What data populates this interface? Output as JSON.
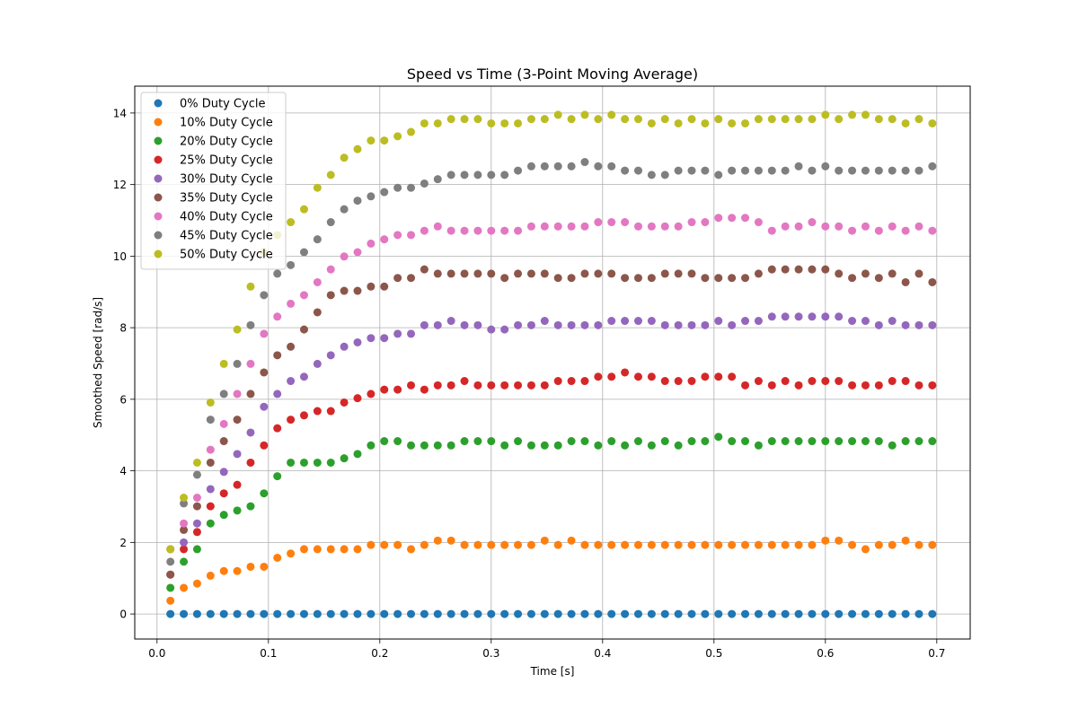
{
  "chart_data": {
    "type": "scatter",
    "title": "Speed vs Time (3-Point Moving Average)",
    "xlabel": "Time [s]",
    "ylabel": "Smoothed Speed [rad/s]",
    "xlim": [
      -0.02,
      0.73
    ],
    "ylim": [
      -0.7,
      14.75
    ],
    "xticks": [
      0.0,
      0.1,
      0.2,
      0.3,
      0.4,
      0.5,
      0.6,
      0.7
    ],
    "xtick_labels": [
      "0.0",
      "0.1",
      "0.2",
      "0.3",
      "0.4",
      "0.5",
      "0.6",
      "0.7"
    ],
    "yticks": [
      0,
      2,
      4,
      6,
      8,
      10,
      12,
      14
    ],
    "ytick_labels": [
      "0",
      "2",
      "4",
      "6",
      "8",
      "10",
      "12",
      "14"
    ],
    "grid": true,
    "legend_position": "top-left",
    "x": [
      0.012,
      0.024,
      0.036,
      0.048,
      0.06,
      0.072,
      0.084,
      0.096,
      0.108,
      0.12,
      0.132,
      0.144,
      0.156,
      0.168,
      0.18,
      0.192,
      0.204,
      0.216,
      0.228,
      0.24,
      0.252,
      0.264,
      0.276,
      0.288,
      0.3,
      0.312,
      0.324,
      0.336,
      0.348,
      0.36,
      0.372,
      0.384,
      0.396,
      0.408,
      0.42,
      0.432,
      0.444,
      0.456,
      0.468,
      0.48,
      0.492,
      0.504,
      0.516,
      0.528,
      0.54,
      0.552,
      0.564,
      0.576,
      0.588,
      0.6,
      0.612,
      0.624,
      0.636,
      0.648,
      0.66,
      0.672,
      0.684,
      0.696
    ],
    "series": [
      {
        "name": "0% Duty Cycle",
        "color": "#1f77b4",
        "values": [
          0,
          0,
          0,
          0,
          0,
          0,
          0,
          0,
          0,
          0,
          0,
          0,
          0,
          0,
          0,
          0,
          0,
          0,
          0,
          0,
          0,
          0,
          0,
          0,
          0,
          0,
          0,
          0,
          0,
          0,
          0,
          0,
          0,
          0,
          0,
          0,
          0,
          0,
          0,
          0,
          0,
          0,
          0,
          0,
          0,
          0,
          0,
          0,
          0,
          0,
          0,
          0,
          0,
          0,
          0,
          0,
          0,
          0
        ]
      },
      {
        "name": "10% Duty Cycle",
        "color": "#ff7f0e",
        "values": [
          0.37,
          0.73,
          0.85,
          1.07,
          1.2,
          1.2,
          1.32,
          1.32,
          1.57,
          1.69,
          1.81,
          1.81,
          1.81,
          1.81,
          1.81,
          1.93,
          1.93,
          1.93,
          1.81,
          1.93,
          2.05,
          2.05,
          1.93,
          1.93,
          1.93,
          1.93,
          1.93,
          1.93,
          2.05,
          1.93,
          2.05,
          1.93,
          1.93,
          1.93,
          1.93,
          1.93,
          1.93,
          1.93,
          1.93,
          1.93,
          1.93,
          1.93,
          1.93,
          1.93,
          1.93,
          1.93,
          1.93,
          1.93,
          1.93,
          2.05,
          2.05,
          1.93,
          1.81,
          1.93,
          1.93,
          2.05,
          1.93,
          1.93
        ]
      },
      {
        "name": "20% Duty Cycle",
        "color": "#2ca02c",
        "values": [
          0.73,
          1.46,
          1.81,
          2.53,
          2.77,
          2.89,
          3.01,
          3.37,
          3.85,
          4.23,
          4.23,
          4.23,
          4.23,
          4.35,
          4.47,
          4.71,
          4.83,
          4.83,
          4.71,
          4.71,
          4.71,
          4.71,
          4.83,
          4.83,
          4.83,
          4.71,
          4.83,
          4.71,
          4.71,
          4.71,
          4.83,
          4.83,
          4.71,
          4.83,
          4.71,
          4.83,
          4.71,
          4.83,
          4.71,
          4.83,
          4.83,
          4.95,
          4.83,
          4.83,
          4.71,
          4.83,
          4.83,
          4.83,
          4.83,
          4.83,
          4.83,
          4.83,
          4.83,
          4.83,
          4.71,
          4.83,
          4.83,
          4.83
        ]
      },
      {
        "name": "25% Duty Cycle",
        "color": "#d62728",
        "values": [
          1.1,
          1.81,
          2.29,
          3.01,
          3.37,
          3.61,
          4.23,
          4.71,
          5.19,
          5.43,
          5.55,
          5.67,
          5.67,
          5.91,
          6.03,
          6.15,
          6.27,
          6.27,
          6.39,
          6.27,
          6.39,
          6.39,
          6.51,
          6.39,
          6.39,
          6.39,
          6.39,
          6.39,
          6.39,
          6.51,
          6.51,
          6.51,
          6.63,
          6.63,
          6.75,
          6.63,
          6.63,
          6.51,
          6.51,
          6.51,
          6.63,
          6.63,
          6.63,
          6.39,
          6.51,
          6.39,
          6.51,
          6.39,
          6.51,
          6.51,
          6.51,
          6.39,
          6.39,
          6.39,
          6.51,
          6.51,
          6.39,
          6.39
        ]
      },
      {
        "name": "30% Duty Cycle",
        "color": "#9467bd",
        "values": [
          1.81,
          2.0,
          2.53,
          3.49,
          3.97,
          4.47,
          5.07,
          5.79,
          6.15,
          6.51,
          6.63,
          6.99,
          7.23,
          7.47,
          7.59,
          7.71,
          7.71,
          7.83,
          7.83,
          8.07,
          8.07,
          8.19,
          8.07,
          8.07,
          7.95,
          7.95,
          8.07,
          8.07,
          8.19,
          8.07,
          8.07,
          8.07,
          8.07,
          8.19,
          8.19,
          8.19,
          8.19,
          8.07,
          8.07,
          8.07,
          8.07,
          8.19,
          8.07,
          8.19,
          8.19,
          8.31,
          8.31,
          8.31,
          8.31,
          8.31,
          8.31,
          8.19,
          8.19,
          8.07,
          8.19,
          8.07,
          8.07,
          8.07
        ]
      },
      {
        "name": "35% Duty Cycle",
        "color": "#8c564b",
        "values": [
          1.1,
          2.35,
          3.01,
          4.23,
          4.83,
          5.43,
          6.15,
          6.75,
          7.23,
          7.47,
          7.95,
          8.43,
          8.91,
          9.03,
          9.03,
          9.15,
          9.15,
          9.39,
          9.39,
          9.63,
          9.51,
          9.51,
          9.51,
          9.51,
          9.51,
          9.39,
          9.51,
          9.51,
          9.51,
          9.39,
          9.39,
          9.51,
          9.51,
          9.51,
          9.39,
          9.39,
          9.39,
          9.51,
          9.51,
          9.51,
          9.39,
          9.39,
          9.39,
          9.39,
          9.51,
          9.63,
          9.63,
          9.63,
          9.63,
          9.63,
          9.51,
          9.39,
          9.51,
          9.39,
          9.51,
          9.27,
          9.51,
          9.27
        ]
      },
      {
        "name": "40% Duty Cycle",
        "color": "#e377c2",
        "values": [
          1.81,
          2.53,
          3.25,
          4.59,
          5.31,
          6.15,
          6.99,
          7.83,
          8.31,
          8.67,
          8.91,
          9.27,
          9.63,
          9.99,
          10.11,
          10.35,
          10.47,
          10.59,
          10.59,
          10.71,
          10.83,
          10.71,
          10.71,
          10.71,
          10.71,
          10.71,
          10.71,
          10.83,
          10.83,
          10.83,
          10.83,
          10.83,
          10.95,
          10.95,
          10.95,
          10.83,
          10.83,
          10.83,
          10.83,
          10.95,
          10.95,
          11.07,
          11.07,
          11.07,
          10.95,
          10.71,
          10.83,
          10.83,
          10.95,
          10.83,
          10.83,
          10.71,
          10.83,
          10.71,
          10.83,
          10.71,
          10.83,
          10.71
        ]
      },
      {
        "name": "45% Duty Cycle",
        "color": "#7f7f7f",
        "values": [
          1.46,
          3.09,
          3.89,
          5.43,
          6.15,
          6.99,
          8.07,
          8.91,
          9.51,
          9.75,
          10.11,
          10.47,
          10.95,
          11.31,
          11.55,
          11.67,
          11.79,
          11.91,
          11.91,
          12.03,
          12.15,
          12.27,
          12.27,
          12.27,
          12.27,
          12.27,
          12.39,
          12.51,
          12.51,
          12.51,
          12.51,
          12.63,
          12.51,
          12.51,
          12.39,
          12.39,
          12.27,
          12.27,
          12.39,
          12.39,
          12.39,
          12.27,
          12.39,
          12.39,
          12.39,
          12.39,
          12.39,
          12.51,
          12.39,
          12.51,
          12.39,
          12.39,
          12.39,
          12.39,
          12.39,
          12.39,
          12.39,
          12.51
        ]
      },
      {
        "name": "50% Duty Cycle",
        "color": "#bcbd22",
        "values": [
          1.81,
          3.25,
          4.23,
          5.91,
          6.99,
          7.95,
          9.15,
          10.11,
          10.59,
          10.95,
          11.31,
          11.91,
          12.27,
          12.75,
          12.99,
          13.23,
          13.23,
          13.35,
          13.47,
          13.71,
          13.71,
          13.83,
          13.83,
          13.83,
          13.71,
          13.71,
          13.71,
          13.83,
          13.83,
          13.95,
          13.83,
          13.95,
          13.83,
          13.95,
          13.83,
          13.83,
          13.71,
          13.83,
          13.71,
          13.83,
          13.71,
          13.83,
          13.71,
          13.71,
          13.83,
          13.83,
          13.83,
          13.83,
          13.83,
          13.95,
          13.83,
          13.95,
          13.95,
          13.83,
          13.83,
          13.71,
          13.83,
          13.71
        ]
      }
    ]
  }
}
